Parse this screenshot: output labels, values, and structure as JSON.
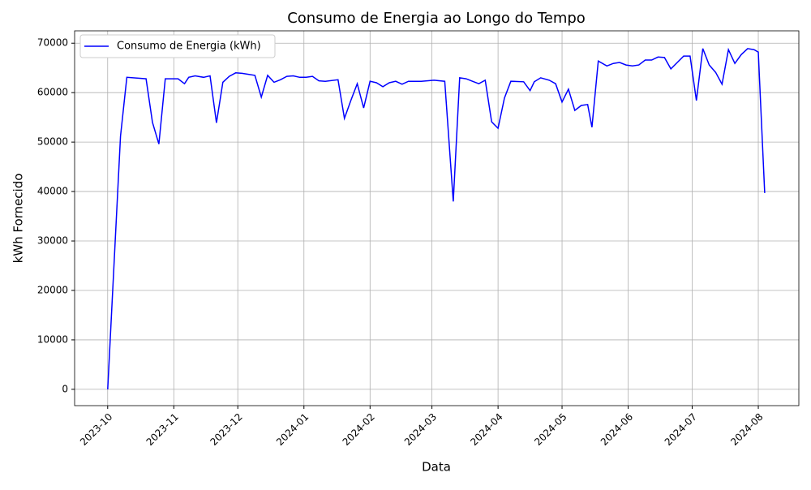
{
  "chart_data": {
    "type": "line",
    "title": "Consumo de Energia ao Longo do Tempo",
    "xlabel": "Data",
    "ylabel": "kWh Fornecido",
    "x": [
      0,
      6,
      9,
      18,
      21,
      24,
      27,
      33,
      36,
      38,
      41,
      45,
      48,
      51,
      54,
      57,
      60,
      63,
      69,
      72,
      75,
      78,
      81,
      84,
      87,
      90,
      93,
      96,
      99,
      102,
      108,
      111,
      114,
      117,
      120,
      123,
      126,
      129,
      132,
      135,
      138,
      141,
      147,
      153,
      158,
      162,
      165,
      168,
      171,
      174,
      177,
      180,
      183,
      186,
      189,
      195,
      198,
      200,
      203,
      207,
      210,
      213,
      216,
      219,
      222,
      225,
      227,
      230,
      234,
      237,
      240,
      243,
      246,
      249,
      252,
      255,
      258,
      261,
      264,
      267,
      270,
      273,
      276,
      279,
      282,
      285,
      288,
      291,
      294,
      297,
      300,
      303,
      305,
      308
    ],
    "series": [
      {
        "name": "Consumo de Energia (kWh)",
        "color": "#0000ff",
        "values": [
          0,
          51200,
          63100,
          62800,
          54000,
          49600,
          62800,
          62800,
          61800,
          63100,
          63400,
          63100,
          63400,
          53900,
          62100,
          63300,
          64000,
          63900,
          63500,
          59100,
          63500,
          62100,
          62600,
          63300,
          63400,
          63100,
          63100,
          63300,
          62400,
          62300,
          62600,
          54800,
          58400,
          61800,
          56900,
          62300,
          62000,
          61200,
          62000,
          62300,
          61700,
          62300,
          62300,
          62500,
          62300,
          38000,
          63000,
          62800,
          62300,
          61800,
          62500,
          54100,
          52800,
          58900,
          62300,
          62200,
          60400,
          62200,
          63000,
          62500,
          61800,
          58100,
          60700,
          56400,
          57400,
          57600,
          53000,
          66400,
          65400,
          65900,
          66100,
          65600,
          65400,
          65600,
          66600,
          66600,
          67200,
          67100,
          64800,
          66100,
          67400,
          67400,
          58400,
          68900,
          65600,
          64100,
          61700,
          68700,
          65900,
          67700,
          68900,
          68700,
          68200,
          39700
        ]
      }
    ],
    "xlim": [
      -15.5,
      324
    ],
    "xticks": [
      {
        "value": 0,
        "label": "2023-10"
      },
      {
        "value": 31,
        "label": "2023-11"
      },
      {
        "value": 61,
        "label": "2023-12"
      },
      {
        "value": 92,
        "label": "2024-01"
      },
      {
        "value": 123,
        "label": "2024-02"
      },
      {
        "value": 152,
        "label": "2024-03"
      },
      {
        "value": 183,
        "label": "2024-04"
      },
      {
        "value": 213,
        "label": "2024-05"
      },
      {
        "value": 244,
        "label": "2024-06"
      },
      {
        "value": 274,
        "label": "2024-07"
      },
      {
        "value": 305,
        "label": "2024-08"
      }
    ],
    "ylim": [
      -3300,
      72500
    ],
    "yticks": [
      0,
      10000,
      20000,
      30000,
      40000,
      50000,
      60000,
      70000
    ],
    "grid": true,
    "legend": "upper-left"
  }
}
